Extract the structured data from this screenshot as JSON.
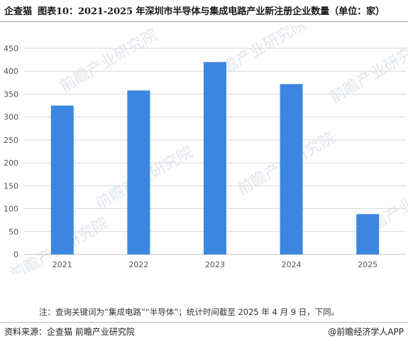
{
  "header": {
    "brand": "企查猫",
    "title": "图表10：2021-2025 年深圳市半导体与集成电路产业新注册企业数量（单位：家）"
  },
  "chart_data": {
    "type": "bar",
    "categories": [
      "2021",
      "2022",
      "2023",
      "2024",
      "2025"
    ],
    "values": [
      325,
      358,
      420,
      372,
      88
    ],
    "ylim": [
      0,
      450
    ],
    "yticks": [
      0,
      50,
      100,
      150,
      200,
      250,
      300,
      350,
      400,
      450
    ],
    "bar_color": "#3c86e0",
    "grid": true,
    "title": "",
    "xlabel": "",
    "ylabel": ""
  },
  "watermark": "前瞻产业研究院",
  "footer": {
    "note": "注：查询关键词为“集成电路”“半导体”；统计时间截至 2025 年 4 月 9 日，下同。",
    "source": "资料来源：企查猫 前瞻产业研究院",
    "credit": "@前瞻经济学人APP"
  }
}
